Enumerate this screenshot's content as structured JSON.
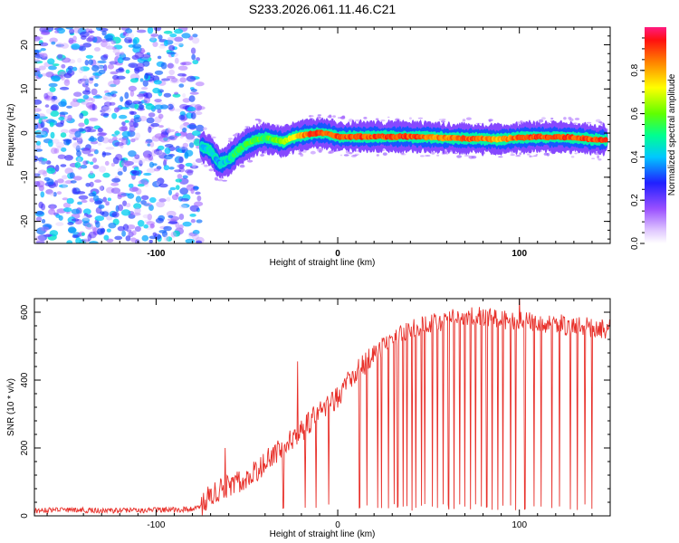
{
  "title": "S233.2026.061.11.46.C21",
  "chart_data": [
    {
      "type": "heatmap",
      "xlabel": "Height of straight line (km)",
      "ylabel": "Frequency (Hz)",
      "xlim": [
        -167,
        150
      ],
      "ylim": [
        -25,
        24
      ],
      "x_ticks": [
        -100,
        0,
        100
      ],
      "x_tick_labels": [
        "-100",
        "0",
        "100"
      ],
      "y_ticks": [
        -20,
        -10,
        0,
        10,
        20
      ],
      "y_tick_labels": [
        "-20",
        "-10",
        "0",
        "10",
        "20"
      ],
      "colorbar": {
        "label": "Normalized spectral amplitude",
        "range": [
          0,
          1
        ],
        "ticks": [
          0.0,
          0.2,
          0.4,
          0.6,
          0.8
        ],
        "tick_labels": [
          "0.0",
          "0.2",
          "0.4",
          "0.6",
          "0.8"
        ]
      },
      "noise_region": {
        "x": [
          -167,
          -75
        ],
        "amplitude": [
          0.05,
          0.45
        ]
      },
      "signal_ridge": {
        "x": [
          -75,
          -70,
          -65,
          -60,
          -55,
          -50,
          -45,
          -40,
          -35,
          -30,
          -25,
          -20,
          -15,
          -10,
          -5,
          0,
          10,
          20,
          30,
          40,
          50,
          60,
          70,
          80,
          90,
          100,
          110,
          120,
          130,
          140,
          148
        ],
        "frequency": [
          -3,
          -4,
          -7,
          -6,
          -4,
          -2.5,
          -1.5,
          -1,
          -1.5,
          -2,
          -1,
          -0.5,
          -0.2,
          0,
          -0.2,
          -0.8,
          -0.8,
          -0.8,
          -0.8,
          -0.8,
          -0.9,
          -1.1,
          -1.2,
          -1.3,
          -1.4,
          -1.0,
          -0.9,
          -0.9,
          -1.0,
          -1.4,
          -1.6
        ],
        "amplitude": [
          0.45,
          0.5,
          0.45,
          0.5,
          0.6,
          0.6,
          0.65,
          0.6,
          0.65,
          0.7,
          0.75,
          0.85,
          0.95,
          0.95,
          0.9,
          0.95,
          0.95,
          0.95,
          0.95,
          0.95,
          0.9,
          0.9,
          0.95,
          0.9,
          0.85,
          0.95,
          0.95,
          0.95,
          0.95,
          0.95,
          0.95
        ]
      }
    },
    {
      "type": "line",
      "xlabel": "Height of straight line (km)",
      "ylabel": "SNR (10 * v/v)",
      "xlim": [
        -167,
        150
      ],
      "ylim": [
        0,
        640
      ],
      "x_ticks": [
        -100,
        0,
        100
      ],
      "x_tick_labels": [
        "-100",
        "0",
        "100"
      ],
      "y_ticks": [
        0,
        200,
        400,
        600
      ],
      "y_tick_labels": [
        "0",
        "200",
        "400",
        "600"
      ],
      "series": [
        {
          "name": "SNR",
          "color": "#e8302a",
          "x": [
            -167,
            -150,
            -130,
            -110,
            -90,
            -80,
            -75,
            -70,
            -65,
            -60,
            -55,
            -50,
            -45,
            -40,
            -35,
            -30,
            -25,
            -20,
            -15,
            -10,
            -5,
            0,
            5,
            10,
            15,
            20,
            25,
            30,
            35,
            40,
            45,
            50,
            55,
            60,
            70,
            80,
            90,
            100,
            110,
            120,
            130,
            140,
            150
          ],
          "y": [
            15,
            18,
            15,
            16,
            18,
            20,
            30,
            60,
            80,
            90,
            100,
            115,
            130,
            160,
            180,
            200,
            230,
            250,
            280,
            310,
            330,
            350,
            390,
            420,
            450,
            470,
            500,
            520,
            540,
            550,
            560,
            565,
            570,
            580,
            590,
            585,
            575,
            575,
            570,
            565,
            560,
            555,
            550
          ]
        }
      ],
      "spikes_up": [
        [
          -62,
          200
        ],
        [
          -22,
          455
        ],
        [
          -2,
          310
        ],
        [
          100,
          640
        ]
      ],
      "dropouts_x": [
        -30,
        -18,
        -12,
        -5,
        12,
        16,
        22,
        24,
        28,
        31,
        33,
        36,
        38,
        41,
        43,
        46,
        48,
        52,
        55,
        58,
        61,
        64,
        67,
        70,
        73,
        76,
        79,
        82,
        85,
        88,
        91,
        95,
        98,
        103,
        108,
        112,
        118,
        122,
        128,
        132,
        136,
        140
      ]
    }
  ]
}
